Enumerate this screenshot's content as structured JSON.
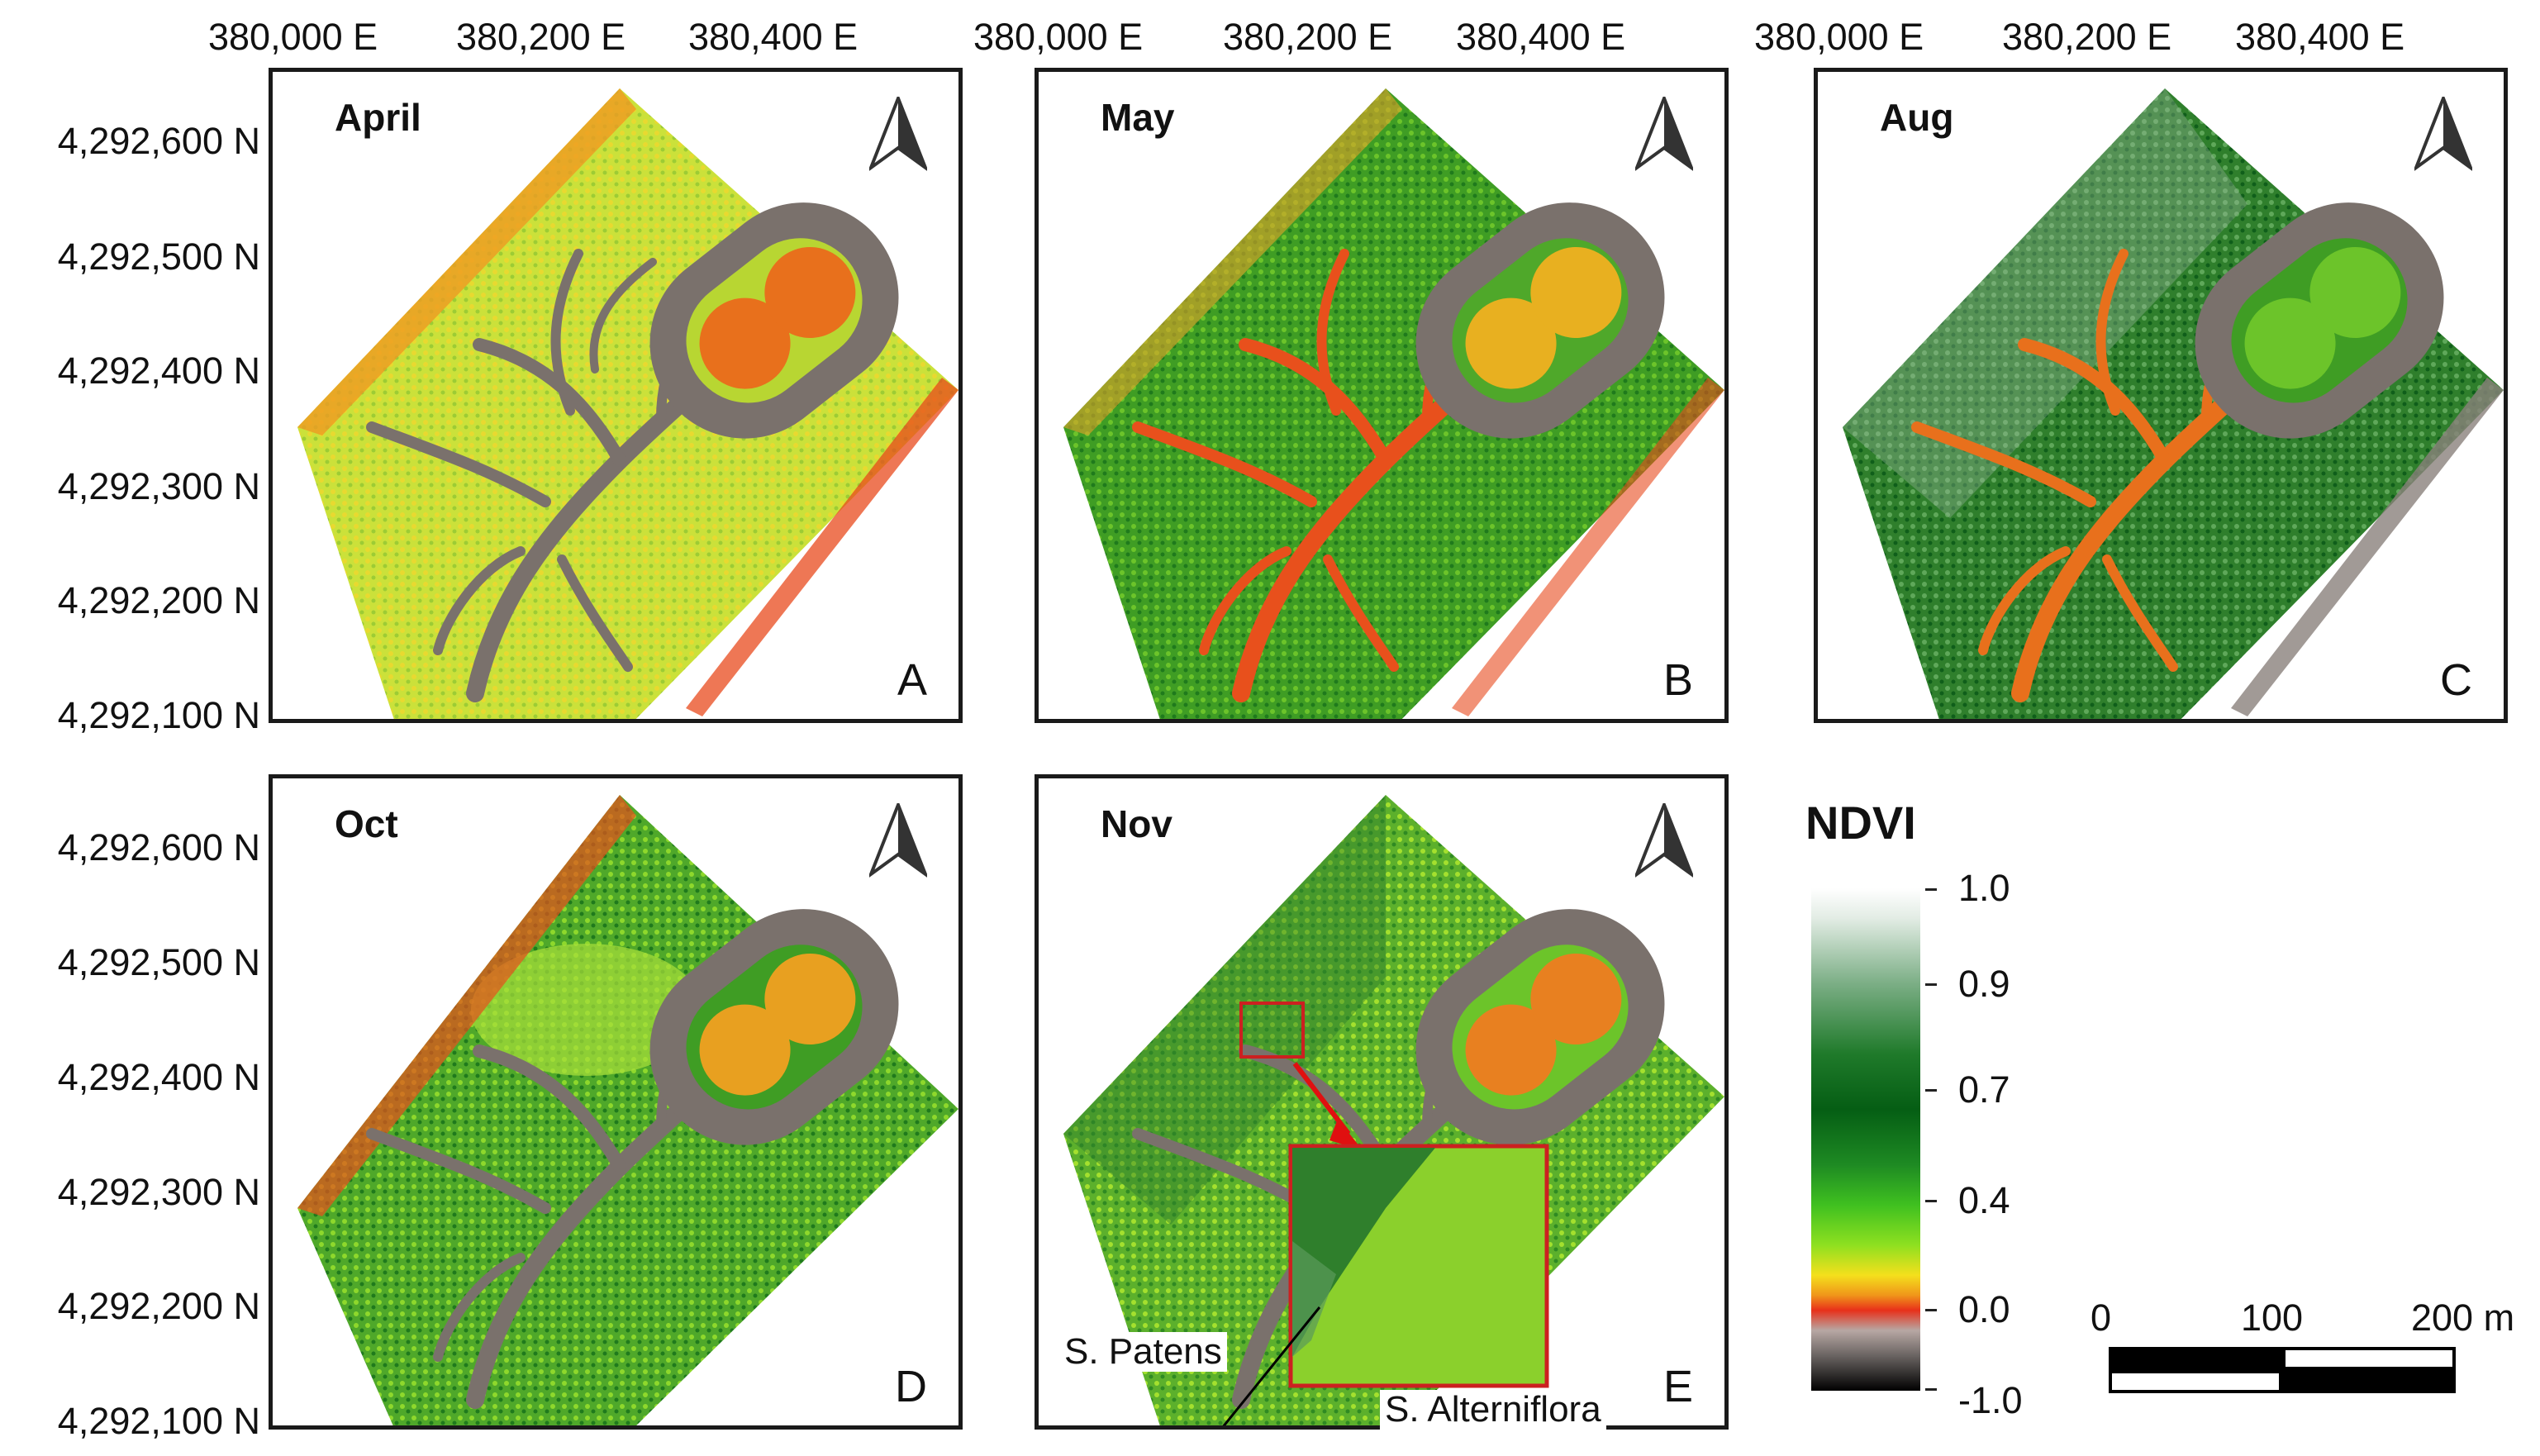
{
  "axes": {
    "x_labels": [
      "380,000 E",
      "380,200 E",
      "380,400 E"
    ],
    "y_labels": [
      "4,292,600 N",
      "4,292,500 N",
      "4,292,400 N",
      "4,292,300 N",
      "4,292,200 N",
      "4,292,100 N"
    ]
  },
  "panels": [
    {
      "month": "April",
      "letter": "A"
    },
    {
      "month": "May",
      "letter": "B"
    },
    {
      "month": "Aug",
      "letter": "C"
    },
    {
      "month": "Oct",
      "letter": "D"
    },
    {
      "month": "Nov",
      "letter": "E"
    }
  ],
  "inset": {
    "label_left": "S. Patens",
    "label_right": "S. Alterniflora"
  },
  "legend": {
    "title": "NDVI",
    "ticks": [
      "1.0",
      "0.9",
      "0.7",
      "0.4",
      "0.0",
      "-1.0"
    ]
  },
  "scalebar": {
    "labels": [
      "0",
      "100",
      "200 m"
    ]
  },
  "colors": {
    "april_bg": "#cde23a",
    "april_base": "#b8d632",
    "may_base": "#3f9d24",
    "aug_base": "#2f7f2c",
    "oct_base": "#4fa82a",
    "nov_base": "#5cb02c",
    "channel": "#7a716c",
    "pond": "#e8701c"
  }
}
